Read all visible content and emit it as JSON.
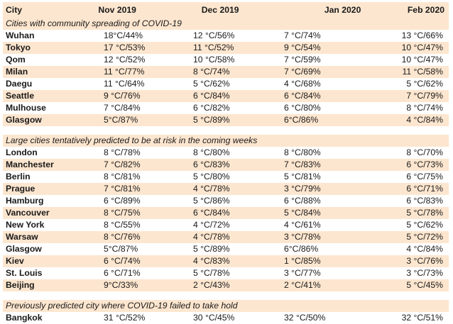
{
  "header": {
    "city": "City",
    "months": [
      "Nov 2019",
      "Dec 2019",
      "Jan 2020",
      "Feb 2020"
    ]
  },
  "sections": [
    {
      "title": "Cities with community spreading of COVID-19",
      "rows": [
        {
          "city": "Wuhan",
          "values": [
            "18°C/44%",
            "12 °C/56%",
            "7 °C/74%",
            "13 °C/66%"
          ]
        },
        {
          "city": "Tokyo",
          "values": [
            "17 °C/53%",
            "11 °C/52%",
            "9 °C/54%",
            "10 °C/47%"
          ]
        },
        {
          "city": "Qom",
          "values": [
            "12 °C/52%",
            "10 °C/58%",
            "7 °C/59%",
            "10 °C/47%"
          ]
        },
        {
          "city": "Milan",
          "values": [
            "11 °C/77%",
            "8 °C/74%",
            "7 °C/69%",
            "11 °C/58%"
          ]
        },
        {
          "city": "Daegu",
          "values": [
            "11 °C/64%",
            "5 °C/62%",
            "4 °C/68%",
            "5 °C/62%"
          ]
        },
        {
          "city": "Seattle",
          "values": [
            "9 °C/76%",
            "6 °C/84%",
            "6 °C/84%",
            "7 °C/79%"
          ]
        },
        {
          "city": "Mulhouse",
          "values": [
            "7 °C/84%",
            "6 °C/82%",
            "6 °C/80%",
            "8 °C/74%"
          ]
        },
        {
          "city": "Glasgow",
          "values": [
            "5°C/87%",
            "5 °C/89%",
            "6°C/86%",
            "4 °C/84%"
          ]
        }
      ]
    },
    {
      "title": "Large cities tentatively predicted to be at risk in the coming weeks",
      "rows": [
        {
          "city": "London",
          "values": [
            "8 °C/78%",
            "8 °C/80%",
            "8 °C/80%",
            "8 °C/70%"
          ]
        },
        {
          "city": "Manchester",
          "values": [
            "7 °C/82%",
            "6 °C/83%",
            "7 °C/83%",
            "6 °C/73%"
          ]
        },
        {
          "city": "Berlin",
          "values": [
            "8 °C/81%",
            "5 °C/80%",
            "5 °C/81%",
            "6 °C/75%"
          ]
        },
        {
          "city": "Prague",
          "values": [
            "7 °C/81%",
            "4 °C/78%",
            "3 °C/79%",
            "6 °C/71%"
          ]
        },
        {
          "city": "Hamburg",
          "values": [
            "6 °C/89%",
            "5 °C/86%",
            "6 °C/88%",
            "6 °C/83%"
          ]
        },
        {
          "city": "Vancouver",
          "values": [
            "8 °C/75%",
            "6 °C/84%",
            "5 °C/84%",
            "5 °C/78%"
          ]
        },
        {
          "city": "New York",
          "values": [
            "8 °C/55%",
            "4 °C/72%",
            "4 °C/61%",
            "5 °C/62%"
          ]
        },
        {
          "city": "Warsaw",
          "values": [
            "8 °C/76%",
            "4 °C/78%",
            "3 °C/78%",
            "5 °C/72%"
          ]
        },
        {
          "city": "Glasgow",
          "values": [
            "5°C/87%",
            "5 °C/89%",
            "6°C/86%",
            "4 °C/84%"
          ]
        },
        {
          "city": "Kiev",
          "values": [
            "6 °C/74%",
            "4 °C/83%",
            "1 °C/85%",
            "3 °C/76%"
          ]
        },
        {
          "city": "St. Louis",
          "values": [
            "6 °C/71%",
            "5 °C/78%",
            "3 °C/77%",
            "3 °C/73%"
          ]
        },
        {
          "city": "Beijing",
          "values": [
            "9°C/33%",
            "2 °C/43%",
            "2 °C/41%",
            "5 °C/45%"
          ]
        }
      ]
    },
    {
      "title": "Previously predicted city where COVID-19 failed to take hold",
      "rows": [
        {
          "city": "Bangkok",
          "values": [
            "31 °C/52%",
            "30 °C/45%",
            "32 °C/50%",
            "32 °C/51%"
          ]
        }
      ]
    }
  ],
  "colors": {
    "band": "#fde6cf",
    "text": "#1a1a1a"
  }
}
